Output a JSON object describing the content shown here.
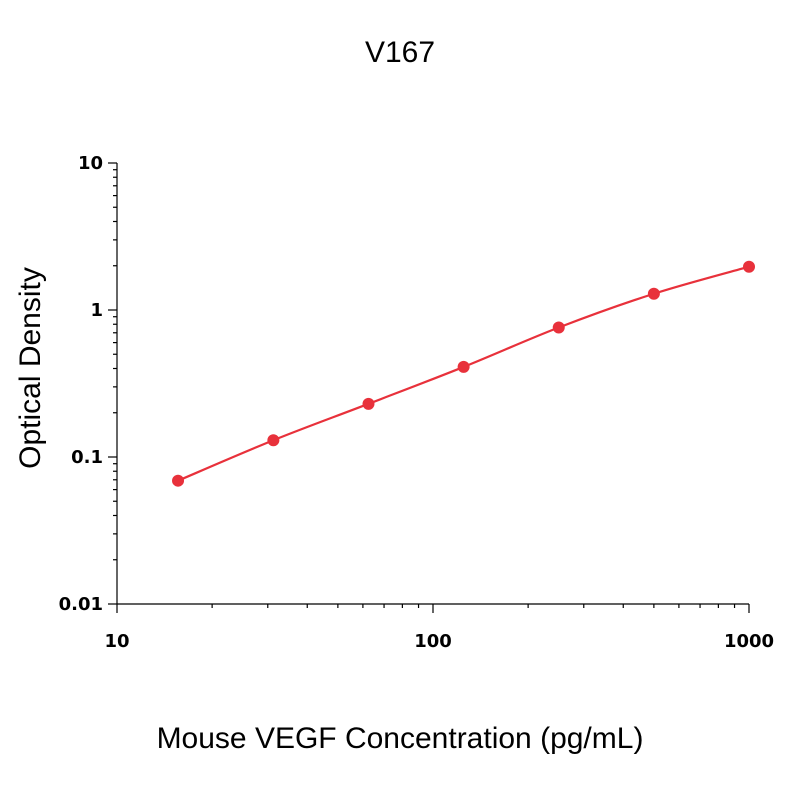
{
  "chart_data": {
    "type": "scatter",
    "title": "V167",
    "xlabel": "Mouse VEGF Concentration (pg/mL)",
    "ylabel": "Optical Density",
    "x_scale": "log",
    "y_scale": "log",
    "xlim": [
      10,
      1000
    ],
    "ylim": [
      0.01,
      10
    ],
    "x_ticks": [
      10,
      100,
      1000
    ],
    "x_tick_labels": [
      "10",
      "100",
      "1000"
    ],
    "y_ticks": [
      0.01,
      0.1,
      1,
      10
    ],
    "y_tick_labels": [
      "0.01",
      "0.1",
      "1",
      "10"
    ],
    "grid": false,
    "series": [
      {
        "x": [
          15.6,
          31.25,
          62.5,
          125,
          250,
          500,
          1000
        ],
        "y": [
          0.069,
          0.13,
          0.23,
          0.41,
          0.76,
          1.29,
          1.97
        ],
        "fit": "smooth-curve",
        "color": "#e8313b"
      }
    ]
  }
}
